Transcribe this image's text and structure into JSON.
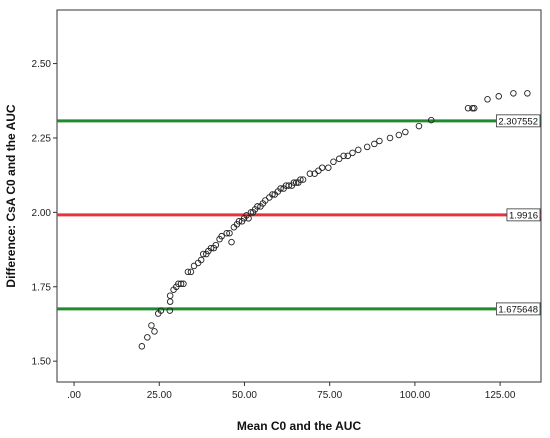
{
  "chart_data": {
    "type": "scatter",
    "title": "",
    "xlabel": "Mean C0 and the AUC",
    "ylabel": "Difference: CsA C0 and the AUC",
    "xlim": [
      -5,
      137
    ],
    "ylim": [
      1.43,
      2.68
    ],
    "x_ticks": [
      0,
      25,
      50,
      75,
      100,
      125
    ],
    "x_tick_labels": [
      ".00",
      "25.00",
      "50.00",
      "75.00",
      "100.00",
      "125.00"
    ],
    "y_ticks": [
      1.5,
      1.75,
      2.0,
      2.25,
      2.5
    ],
    "y_tick_labels": [
      "1.50",
      "1.75",
      "2.00",
      "2.25",
      "2.50"
    ],
    "grid": false,
    "marker": "open-circle",
    "reference_lines": [
      {
        "value": 2.307552,
        "label": "2.307552",
        "color": "#1e8c2e"
      },
      {
        "value": 1.9916,
        "label": "1.9916",
        "color": "#e8323c"
      },
      {
        "value": 1.675648,
        "label": "1.675648",
        "color": "#1e8c2e"
      }
    ],
    "points": [
      [
        19.9,
        1.55
      ],
      [
        21.5,
        1.58
      ],
      [
        22.7,
        1.62
      ],
      [
        23.6,
        1.6
      ],
      [
        24.7,
        1.66
      ],
      [
        25.5,
        1.67
      ],
      [
        28.1,
        1.67
      ],
      [
        28.2,
        1.7
      ],
      [
        28.2,
        1.72
      ],
      [
        29.2,
        1.74
      ],
      [
        30.0,
        1.75
      ],
      [
        30.6,
        1.76
      ],
      [
        31.4,
        1.76
      ],
      [
        32.1,
        1.76
      ],
      [
        33.4,
        1.8
      ],
      [
        34.3,
        1.8
      ],
      [
        35.2,
        1.82
      ],
      [
        36.4,
        1.83
      ],
      [
        37.3,
        1.84
      ],
      [
        37.9,
        1.86
      ],
      [
        38.8,
        1.86
      ],
      [
        39.4,
        1.87
      ],
      [
        40.2,
        1.88
      ],
      [
        41.0,
        1.88
      ],
      [
        41.6,
        1.89
      ],
      [
        42.7,
        1.91
      ],
      [
        43.3,
        1.92
      ],
      [
        44.8,
        1.93
      ],
      [
        45.6,
        1.93
      ],
      [
        46.2,
        1.9
      ],
      [
        46.9,
        1.95
      ],
      [
        47.8,
        1.96
      ],
      [
        48.4,
        1.97
      ],
      [
        49.3,
        1.97
      ],
      [
        49.9,
        1.98
      ],
      [
        50.6,
        1.99
      ],
      [
        51.2,
        1.98
      ],
      [
        51.9,
        2.0
      ],
      [
        52.5,
        2.0
      ],
      [
        53.1,
        2.01
      ],
      [
        53.8,
        2.02
      ],
      [
        54.7,
        2.02
      ],
      [
        55.4,
        2.03
      ],
      [
        56.1,
        2.04
      ],
      [
        57.3,
        2.05
      ],
      [
        58.2,
        2.06
      ],
      [
        58.9,
        2.06
      ],
      [
        59.8,
        2.07
      ],
      [
        60.6,
        2.08
      ],
      [
        61.5,
        2.08
      ],
      [
        62.2,
        2.09
      ],
      [
        63.0,
        2.09
      ],
      [
        63.9,
        2.09
      ],
      [
        64.5,
        2.1
      ],
      [
        65.2,
        2.1
      ],
      [
        65.8,
        2.1
      ],
      [
        66.4,
        2.11
      ],
      [
        67.2,
        2.11
      ],
      [
        69.2,
        2.13
      ],
      [
        70.6,
        2.13
      ],
      [
        71.7,
        2.14
      ],
      [
        72.8,
        2.15
      ],
      [
        74.6,
        2.15
      ],
      [
        76.1,
        2.17
      ],
      [
        77.8,
        2.18
      ],
      [
        79.1,
        2.19
      ],
      [
        80.3,
        2.19
      ],
      [
        81.7,
        2.2
      ],
      [
        83.4,
        2.21
      ],
      [
        86.0,
        2.22
      ],
      [
        88.1,
        2.23
      ],
      [
        89.6,
        2.24
      ],
      [
        92.7,
        2.25
      ],
      [
        95.3,
        2.26
      ],
      [
        97.2,
        2.27
      ],
      [
        101.2,
        2.29
      ],
      [
        104.8,
        2.31
      ],
      [
        115.6,
        2.35
      ],
      [
        116.9,
        2.35
      ],
      [
        117.4,
        2.35
      ],
      [
        121.3,
        2.38
      ],
      [
        124.6,
        2.39
      ],
      [
        128.9,
        2.4
      ],
      [
        133.0,
        2.4
      ]
    ]
  }
}
